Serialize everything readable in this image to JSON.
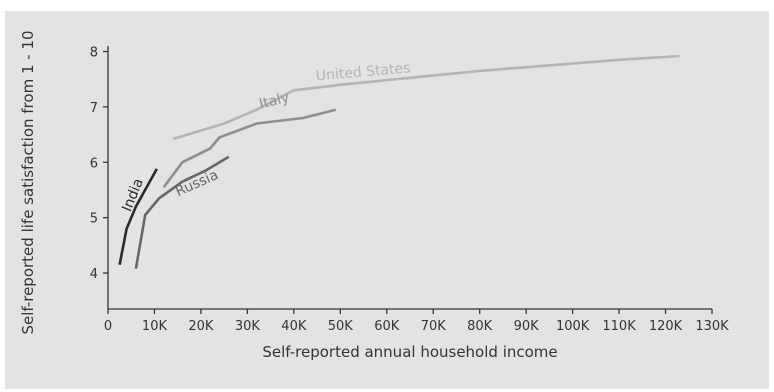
{
  "chart_data": {
    "type": "line",
    "title": "",
    "xlabel": "Self-reported annual household income",
    "ylabel": "Self-reported life satisfaction from 1 - 10",
    "xlim": [
      0,
      130000
    ],
    "ylim": [
      3.35,
      8.1
    ],
    "x_ticks": [
      0,
      10000,
      20000,
      30000,
      40000,
      50000,
      60000,
      70000,
      80000,
      90000,
      100000,
      110000,
      120000,
      130000
    ],
    "x_tick_labels": [
      "0",
      "10K",
      "20K",
      "30K",
      "40K",
      "50K",
      "60K",
      "70K",
      "80K",
      "90K",
      "100K",
      "110K",
      "120K",
      "130K"
    ],
    "y_ticks": [
      4,
      5,
      6,
      7,
      8
    ],
    "y_tick_labels": [
      "4",
      "5",
      "6",
      "7",
      "8"
    ],
    "grid": false,
    "legend": "none (series labelled directly on lines)",
    "series": [
      {
        "name": "United States",
        "color": "#b5b5b5",
        "points": [
          [
            14000,
            6.42
          ],
          [
            25000,
            6.7
          ],
          [
            32000,
            6.95
          ],
          [
            40000,
            7.3
          ],
          [
            50000,
            7.4
          ],
          [
            80000,
            7.65
          ],
          [
            110000,
            7.85
          ],
          [
            123000,
            7.92
          ]
        ]
      },
      {
        "name": "Italy",
        "color": "#8e8e8e",
        "points": [
          [
            12000,
            5.55
          ],
          [
            16000,
            6.0
          ],
          [
            22000,
            6.25
          ],
          [
            24000,
            6.45
          ],
          [
            32000,
            6.7
          ],
          [
            42000,
            6.8
          ],
          [
            49000,
            6.95
          ]
        ]
      },
      {
        "name": "Russia",
        "color": "#666666",
        "points": [
          [
            6000,
            4.08
          ],
          [
            8000,
            5.05
          ],
          [
            11000,
            5.35
          ],
          [
            16000,
            5.65
          ],
          [
            21000,
            5.85
          ],
          [
            26000,
            6.1
          ]
        ]
      },
      {
        "name": "India",
        "color": "#2a2a2a",
        "points": [
          [
            2500,
            4.15
          ],
          [
            4000,
            4.8
          ],
          [
            6000,
            5.2
          ],
          [
            10500,
            5.88
          ]
        ]
      }
    ]
  }
}
